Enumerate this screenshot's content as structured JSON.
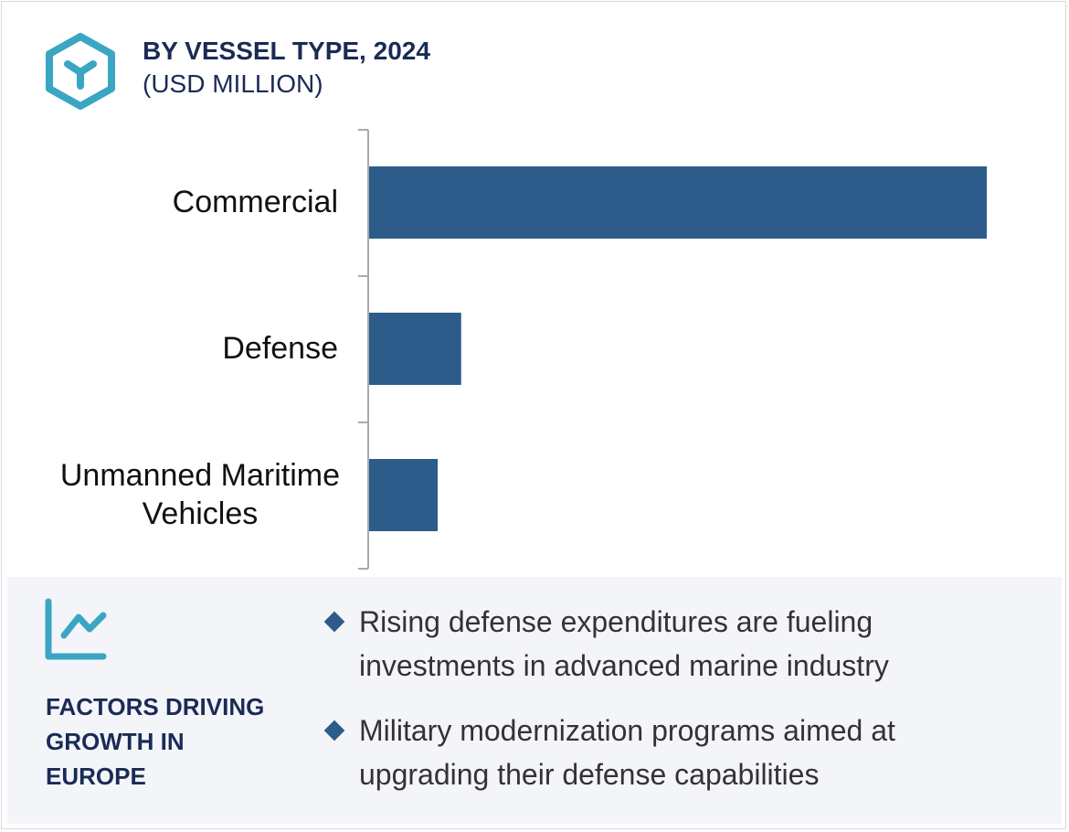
{
  "header": {
    "title": "BY VESSEL TYPE, 2024",
    "subtitle": "(USD MILLION)",
    "icon": "hexagon-cube-icon"
  },
  "colors": {
    "accent": "#3aa6c4",
    "heading": "#1a2b55",
    "bar": "#2d5c8a",
    "panel": "#f3f5f9"
  },
  "chart_data": {
    "type": "bar",
    "orientation": "horizontal",
    "title": "BY VESSEL TYPE, 2024",
    "subtitle": "(USD MILLION)",
    "categories": [
      "Commercial",
      "Defense",
      "Unmanned Maritime Vehicles"
    ],
    "category_lines": [
      [
        "Commercial"
      ],
      [
        "Defense"
      ],
      [
        "Unmanned Maritime",
        "Vehicles"
      ]
    ],
    "values_relative": [
      1.0,
      0.149,
      0.111
    ],
    "grid": false,
    "legend": "none"
  },
  "factors": {
    "icon": "line-chart-icon",
    "heading_lines": [
      "FACTORS DRIVING",
      "GROWTH IN",
      "EUROPE"
    ],
    "bullets": [
      {
        "lines": [
          "Rising defense expenditures are fueling",
          "investments in advanced marine industry"
        ]
      },
      {
        "lines": [
          "Military modernization programs aimed at",
          "upgrading their defense capabilities"
        ]
      }
    ]
  }
}
